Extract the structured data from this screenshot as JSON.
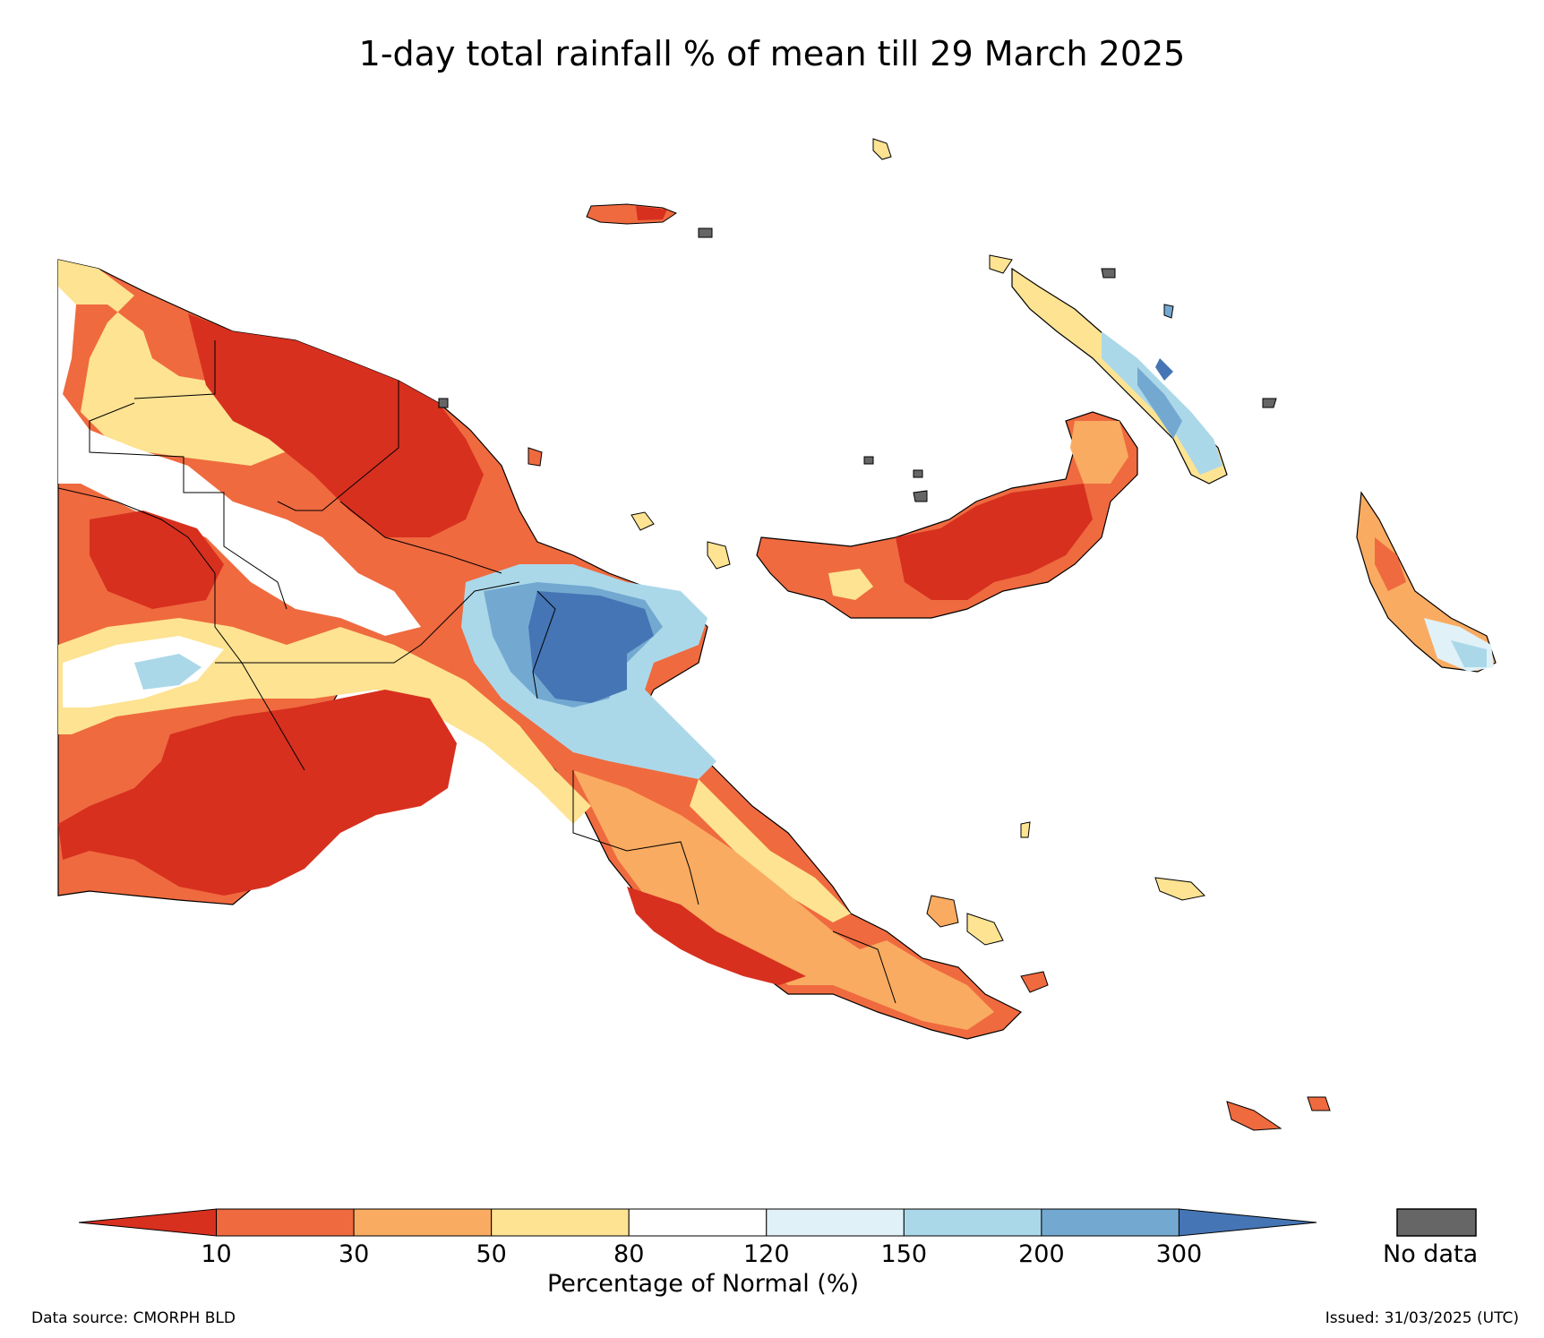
{
  "title": "1-day total rainfall % of mean till 29 March 2025",
  "colorbar": {
    "title": "Percentage of Normal (%)",
    "ticks": [
      "10",
      "30",
      "50",
      "80",
      "120",
      "150",
      "200",
      "300"
    ],
    "colors": [
      "#d7301f",
      "#ef6a3f",
      "#f9ab61",
      "#fde392",
      "#ffffff",
      "#e0f1f8",
      "#abd8e9",
      "#73a9d1",
      "#4575b4"
    ],
    "nodata_label": "No data",
    "nodata_color": "#666666"
  },
  "footer": {
    "source": "Data source: CMORPH BLD",
    "issued": "Issued: 31/03/2025 (UTC)"
  }
}
